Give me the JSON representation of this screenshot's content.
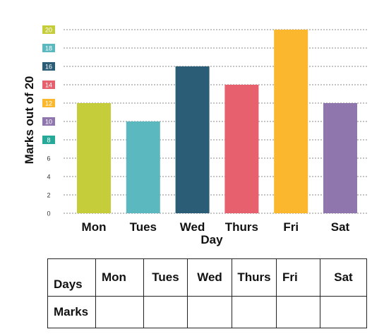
{
  "chart_data": {
    "type": "bar",
    "categories": [
      "Mon",
      "Tues",
      "Wed",
      "Thurs",
      "Fri",
      "Sat"
    ],
    "values": [
      12,
      10,
      16,
      14,
      20,
      12
    ],
    "colors": [
      "#c5cd3b",
      "#5bb8bf",
      "#2b5e76",
      "#e7606d",
      "#fbb82e",
      "#8f77ae"
    ],
    "xlabel": "Day",
    "ylabel": "Marks out of 20",
    "ylim": [
      0,
      20
    ],
    "yticks": [
      0,
      2,
      4,
      6,
      8,
      10,
      12,
      14,
      16,
      18,
      20
    ],
    "ytick_badges": {
      "8": "#27a99a",
      "10": "#8f77ae",
      "12": "#fbb82e",
      "14": "#e7606d",
      "16": "#2b5e76",
      "18": "#5bb8bf",
      "20": "#c5cd3b"
    },
    "grid": "dotted-horizontal"
  },
  "table": {
    "row1_label": "Days",
    "days": [
      "Mon",
      "Tues",
      "Wed",
      "Thurs",
      "Fri",
      "Sat"
    ],
    "row2_label": "Marks"
  }
}
